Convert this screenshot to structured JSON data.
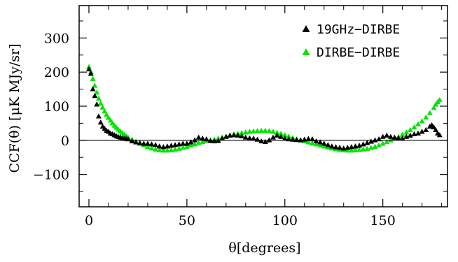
{
  "chart_data": {
    "type": "scatter",
    "title": "",
    "xlabel": "θ[degrees]",
    "ylabel": "CCF(θ) [μK MJy/sr]",
    "xlim": [
      -5,
      183
    ],
    "ylim": [
      -195,
      395
    ],
    "x_ticks": [
      0,
      50,
      100,
      150
    ],
    "y_ticks": [
      -100,
      0,
      100,
      200,
      300
    ],
    "x_tick_labels": [
      "0",
      "50",
      "100",
      "150"
    ],
    "y_tick_labels": [
      "−100",
      "0",
      "100",
      "200",
      "300"
    ],
    "zero_line": true,
    "grid": false,
    "legend_position": "top-right",
    "series": [
      {
        "name": "19GHz−DIRBE",
        "color": "#000000",
        "marker": "triangle",
        "x": [
          0,
          1,
          2,
          3,
          4,
          5,
          6,
          7,
          8,
          9,
          10,
          11,
          12,
          13,
          14,
          15,
          16,
          17,
          18,
          19,
          20,
          22,
          24,
          26,
          28,
          30,
          32,
          34,
          36,
          38,
          40,
          42,
          44,
          46,
          48,
          50,
          52,
          54,
          56,
          58,
          60,
          62,
          64,
          66,
          68,
          70,
          72,
          74,
          76,
          78,
          80,
          82,
          84,
          86,
          88,
          90,
          92,
          94,
          96,
          98,
          100,
          102,
          104,
          106,
          108,
          110,
          112,
          114,
          116,
          118,
          120,
          122,
          124,
          126,
          128,
          130,
          132,
          134,
          136,
          138,
          140,
          142,
          144,
          146,
          148,
          150,
          152,
          154,
          156,
          158,
          160,
          162,
          164,
          166,
          168,
          170,
          172,
          174,
          175,
          176,
          177,
          178,
          179
        ],
        "y": [
          208,
          195,
          150,
          130,
          105,
          70,
          52,
          40,
          34,
          28,
          25,
          20,
          18,
          15,
          12,
          10,
          8,
          6,
          5,
          4,
          3,
          -3,
          -6,
          -8,
          -10,
          -10,
          -12,
          -14,
          -18,
          -20,
          -18,
          -16,
          -14,
          -12,
          -10,
          -10,
          -6,
          0,
          8,
          5,
          3,
          -2,
          -3,
          -2,
          5,
          10,
          14,
          15,
          14,
          12,
          8,
          6,
          5,
          2,
          -3,
          -5,
          0,
          8,
          14,
          10,
          5,
          3,
          2,
          1,
          0,
          2,
          4,
          3,
          -3,
          -6,
          -10,
          -14,
          -18,
          -20,
          -22,
          -24,
          -22,
          -20,
          -18,
          -16,
          -12,
          -8,
          -4,
          0,
          3,
          10,
          14,
          10,
          8,
          6,
          5,
          10,
          14,
          18,
          20,
          25,
          30,
          40,
          44,
          38,
          30,
          20,
          15
        ]
      },
      {
        "name": "DIRBE−DIRBE",
        "color": "#00e600",
        "marker": "triangle",
        "x": [
          0,
          1,
          2,
          3,
          4,
          5,
          6,
          7,
          8,
          9,
          10,
          11,
          12,
          13,
          14,
          15,
          16,
          17,
          18,
          19,
          20,
          22,
          24,
          26,
          28,
          30,
          32,
          34,
          36,
          38,
          40,
          42,
          44,
          46,
          48,
          50,
          52,
          54,
          56,
          58,
          60,
          62,
          64,
          66,
          68,
          70,
          72,
          74,
          76,
          78,
          80,
          82,
          84,
          86,
          88,
          90,
          92,
          94,
          96,
          98,
          100,
          102,
          104,
          106,
          108,
          110,
          112,
          114,
          116,
          118,
          120,
          122,
          124,
          126,
          128,
          130,
          132,
          134,
          136,
          138,
          140,
          142,
          144,
          146,
          148,
          150,
          152,
          154,
          156,
          158,
          160,
          162,
          164,
          166,
          168,
          170,
          172,
          174,
          176,
          177,
          178,
          179
        ],
        "y": [
          215,
          200,
          180,
          160,
          140,
          122,
          108,
          96,
          85,
          75,
          66,
          58,
          50,
          43,
          37,
          31,
          26,
          21,
          16,
          12,
          8,
          2,
          -4,
          -10,
          -15,
          -20,
          -24,
          -27,
          -29,
          -30,
          -30,
          -29,
          -27,
          -25,
          -22,
          -19,
          -15,
          -12,
          -8,
          -5,
          -2,
          0,
          2,
          5,
          8,
          11,
          14,
          17,
          19,
          21,
          23,
          25,
          26,
          27,
          28,
          28,
          27,
          25,
          22,
          19,
          15,
          11,
          7,
          3,
          0,
          -3,
          -6,
          -9,
          -12,
          -15,
          -18,
          -21,
          -24,
          -26,
          -28,
          -29,
          -30,
          -30,
          -29,
          -28,
          -27,
          -25,
          -22,
          -19,
          -15,
          -10,
          -5,
          0,
          5,
          10,
          16,
          23,
          30,
          38,
          47,
          56,
          67,
          80,
          95,
          105,
          112,
          118
        ]
      }
    ]
  }
}
